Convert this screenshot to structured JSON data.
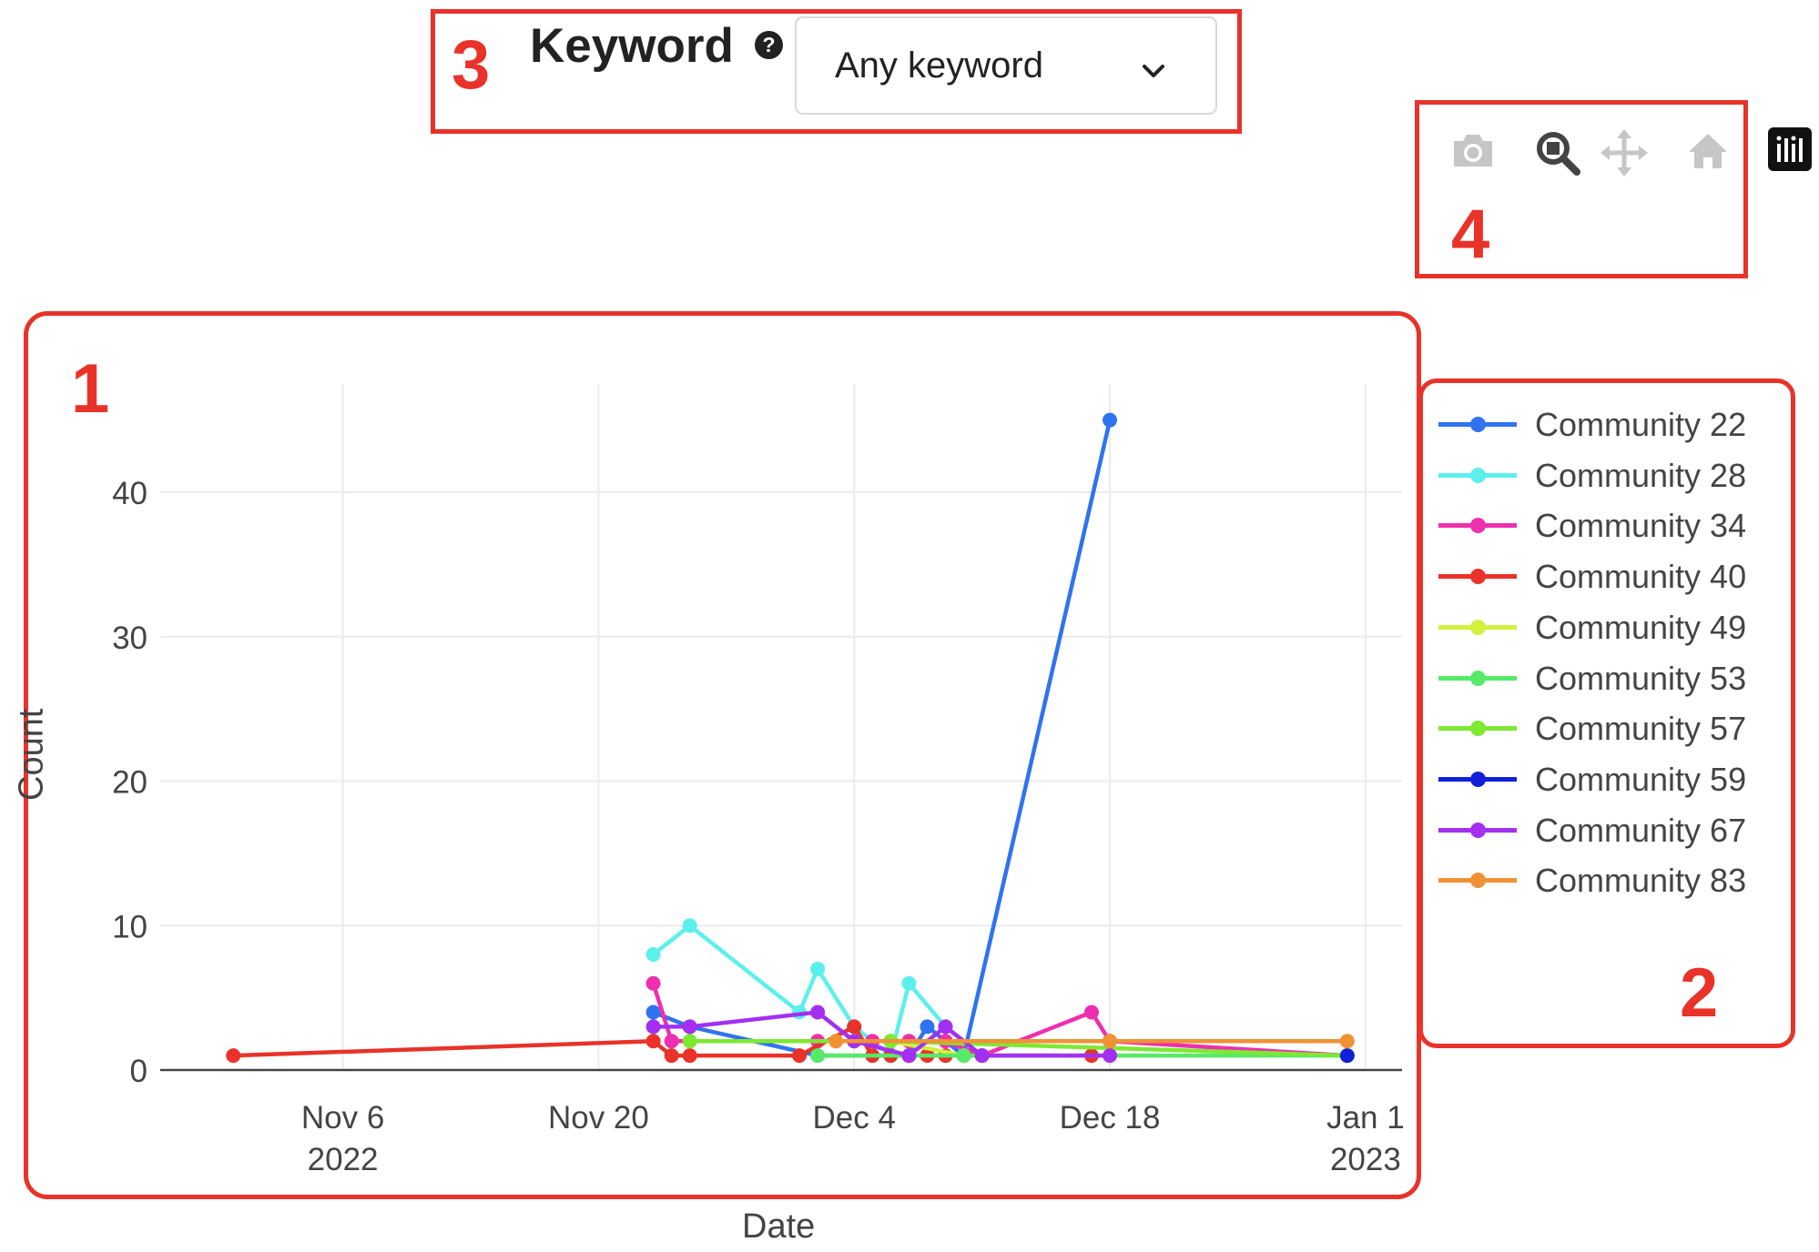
{
  "keyword_filter": {
    "marker": "3",
    "label": "Keyword",
    "help_icon": "question-circle-icon",
    "selected_value": "Any keyword",
    "chevron_icon": "chevron-down-icon"
  },
  "toolbar": {
    "marker": "4",
    "buttons": [
      {
        "name": "camera-icon"
      },
      {
        "name": "zoom-icon"
      },
      {
        "name": "pan-icon"
      },
      {
        "name": "home-icon"
      }
    ],
    "logo_icon": "plotly-logo-icon"
  },
  "legend_marker": "2",
  "plot_marker": "1",
  "chart_data": {
    "type": "line",
    "title": "",
    "xlabel": "Date",
    "ylabel": "Count",
    "x_range": [
      "2022-10-27",
      "2023-01-03"
    ],
    "ylim": [
      0,
      47.5
    ],
    "y_ticks": [
      0,
      10,
      20,
      30,
      40
    ],
    "x_ticks": [
      {
        "date": "2022-11-06",
        "label": "Nov 6",
        "year": "2022"
      },
      {
        "date": "2022-11-20",
        "label": "Nov 20",
        "year": ""
      },
      {
        "date": "2022-12-04",
        "label": "Dec 4",
        "year": ""
      },
      {
        "date": "2022-12-18",
        "label": "Dec 18",
        "year": ""
      },
      {
        "date": "2023-01-01",
        "label": "Jan 1",
        "year": "2023"
      }
    ],
    "grid": true,
    "legend_position": "right",
    "series": [
      {
        "name": "Community 22",
        "color": "#2f73f0",
        "points": [
          [
            "2022-11-23",
            4
          ],
          [
            "2022-11-25",
            3
          ],
          [
            "2022-12-02",
            1
          ],
          [
            "2022-12-07",
            1
          ],
          [
            "2022-12-08",
            3
          ],
          [
            "2022-12-10",
            1
          ],
          [
            "2022-12-18",
            45
          ]
        ]
      },
      {
        "name": "Community 28",
        "color": "#5cf0ec",
        "points": [
          [
            "2022-11-23",
            8
          ],
          [
            "2022-11-25",
            10
          ],
          [
            "2022-12-01",
            4
          ],
          [
            "2022-12-02",
            7
          ],
          [
            "2022-12-04",
            3
          ],
          [
            "2022-12-06",
            1
          ],
          [
            "2022-12-07",
            6
          ],
          [
            "2022-12-09",
            3
          ],
          [
            "2022-12-11",
            1
          ]
        ]
      },
      {
        "name": "Community 34",
        "color": "#ee2fae",
        "points": [
          [
            "2022-11-23",
            6
          ],
          [
            "2022-11-24",
            2
          ],
          [
            "2022-12-02",
            2
          ],
          [
            "2022-12-05",
            2
          ],
          [
            "2022-12-07",
            2
          ],
          [
            "2022-12-09",
            2
          ],
          [
            "2022-12-11",
            1
          ],
          [
            "2022-12-17",
            4
          ],
          [
            "2022-12-18",
            2
          ],
          [
            "2022-12-31",
            1
          ]
        ]
      },
      {
        "name": "Community 40",
        "color": "#e8322a",
        "points": [
          [
            "2022-10-31",
            1
          ],
          [
            "2022-11-23",
            2
          ],
          [
            "2022-11-24",
            1
          ],
          [
            "2022-11-25",
            1
          ],
          [
            "2022-12-01",
            1
          ],
          [
            "2022-12-04",
            3
          ],
          [
            "2022-12-05",
            1
          ],
          [
            "2022-12-06",
            1
          ],
          [
            "2022-12-07",
            1
          ],
          [
            "2022-12-08",
            1
          ],
          [
            "2022-12-09",
            1
          ],
          [
            "2022-12-17",
            1
          ]
        ]
      },
      {
        "name": "Community 49",
        "color": "#d3f03c",
        "points": [
          [
            "2022-12-04",
            2
          ],
          [
            "2022-12-06",
            2
          ],
          [
            "2022-12-10",
            1
          ]
        ]
      },
      {
        "name": "Community 53",
        "color": "#56ea68",
        "points": [
          [
            "2022-12-02",
            1
          ],
          [
            "2022-12-10",
            1
          ],
          [
            "2022-12-31",
            1
          ]
        ]
      },
      {
        "name": "Community 57",
        "color": "#7ee832",
        "points": [
          [
            "2022-11-25",
            2
          ],
          [
            "2022-12-06",
            2
          ],
          [
            "2022-12-31",
            1
          ]
        ]
      },
      {
        "name": "Community 59",
        "color": "#1020d8",
        "points": [
          [
            "2022-12-31",
            1
          ]
        ]
      },
      {
        "name": "Community 67",
        "color": "#a330f0",
        "points": [
          [
            "2022-11-23",
            3
          ],
          [
            "2022-11-25",
            3
          ],
          [
            "2022-12-02",
            4
          ],
          [
            "2022-12-04",
            2
          ],
          [
            "2022-12-07",
            1
          ],
          [
            "2022-12-09",
            3
          ],
          [
            "2022-12-11",
            1
          ],
          [
            "2022-12-18",
            1
          ]
        ]
      },
      {
        "name": "Community 83",
        "color": "#f09234",
        "points": [
          [
            "2022-12-03",
            2
          ],
          [
            "2022-12-18",
            2
          ],
          [
            "2022-12-31",
            2
          ]
        ]
      }
    ]
  }
}
